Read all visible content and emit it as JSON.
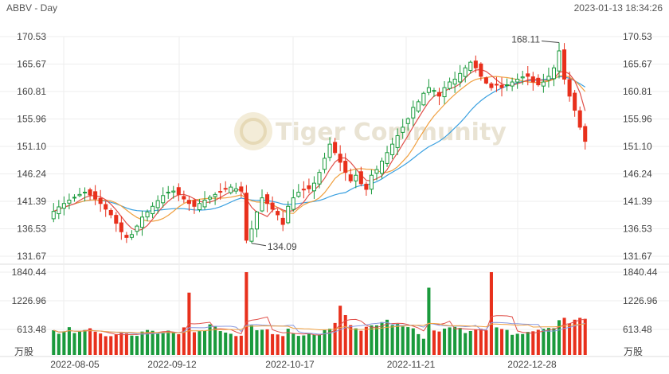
{
  "header": {
    "symbol_period": "ABBV - Day",
    "timestamp": "2023-01-13 18:34:26"
  },
  "watermark": "Tiger Community",
  "colors": {
    "up": "#1a9a3c",
    "down": "#e8301c",
    "grid": "#eeeeee",
    "ma_short": "#e0504a",
    "ma_mid": "#f0a040",
    "ma_long": "#3aa0e0",
    "vol_ma1": "#e0504a",
    "vol_ma2": "#8a9ae0",
    "vol_ma3": "#f0a040"
  },
  "chart_data": [
    {
      "type": "candlestick",
      "title": "",
      "y_ticks": [
        "170.53",
        "165.67",
        "160.81",
        "155.96",
        "151.10",
        "146.24",
        "141.39",
        "136.53",
        "131.67"
      ],
      "ylim": [
        131.67,
        170.53
      ],
      "x_labels": [
        "2022-08-05",
        "2022-09-12",
        "2022-10-17",
        "2022-11-21",
        "2022-12-28"
      ],
      "annotations": {
        "high_label": "168.11",
        "low_label": "134.09"
      },
      "closes": [
        139.6,
        140.4,
        141.0,
        141.6,
        142.1,
        142.6,
        143.0,
        142.5,
        141.8,
        141.0,
        140.0,
        139.0,
        137.5,
        136.0,
        135.0,
        135.5,
        137.0,
        138.6,
        139.5,
        140.5,
        141.5,
        142.4,
        143.0,
        143.2,
        142.6,
        141.8,
        141.0,
        140.5,
        141.0,
        141.6,
        142.1,
        142.6,
        143.1,
        143.6,
        143.9,
        143.6,
        143.2,
        134.5,
        136.5,
        139.5,
        142.0,
        141.0,
        140.0,
        139.0,
        137.3,
        140.5,
        142.0,
        143.0,
        143.5,
        143.6,
        144.6,
        146.5,
        149.0,
        151.5,
        150.0,
        148.3,
        146.5,
        145.0,
        146.0,
        144.5,
        143.5,
        146.0,
        147.0,
        148.5,
        150.0,
        151.5,
        153.0,
        154.5,
        156.0,
        158.0,
        159.0,
        160.5,
        161.5,
        161.0,
        160.0,
        161.5,
        162.5,
        163.0,
        164.0,
        165.0,
        166.0,
        165.0,
        163.5,
        162.3,
        161.5,
        162.0,
        161.5,
        162.0,
        162.5,
        163.0,
        163.4,
        163.5,
        162.5,
        162.0,
        162.5,
        163.5,
        165.0,
        168.0,
        163.0,
        160.0,
        157.5,
        154.5,
        152.0
      ],
      "volume": {
        "y_ticks": [
          "1840.44",
          "1226.96",
          "613.48"
        ],
        "unit": "万股",
        "ylim": [
          0,
          1840.44
        ],
        "values": [
          548,
          470,
          524,
          617,
          486,
          521,
          553,
          592,
          515,
          476,
          416,
          417,
          451,
          491,
          474,
          430,
          423,
          519,
          554,
          536,
          473,
          510,
          540,
          488,
          460,
          612,
          1385,
          504,
          529,
          531,
          679,
          639,
          530,
          496,
          470,
          419,
          427,
          1882,
          658,
          549,
          559,
          569,
          462,
          455,
          419,
          583,
          473,
          423,
          433,
          467,
          444,
          443,
          552,
          582,
          710,
          1094,
          885,
          662,
          591,
          537,
          625,
          657,
          657,
          730,
          782,
          662,
          689,
          633,
          618,
          591,
          462,
          359,
          1495,
          543,
          520,
          585,
          612,
          623,
          600,
          486,
          531,
          568,
          582,
          547,
          2045,
          612,
          577,
          555,
          446,
          470,
          465,
          511,
          525,
          558,
          582,
          599,
          593,
          772,
          825,
          699,
          783,
          824,
          803
        ]
      }
    }
  ]
}
